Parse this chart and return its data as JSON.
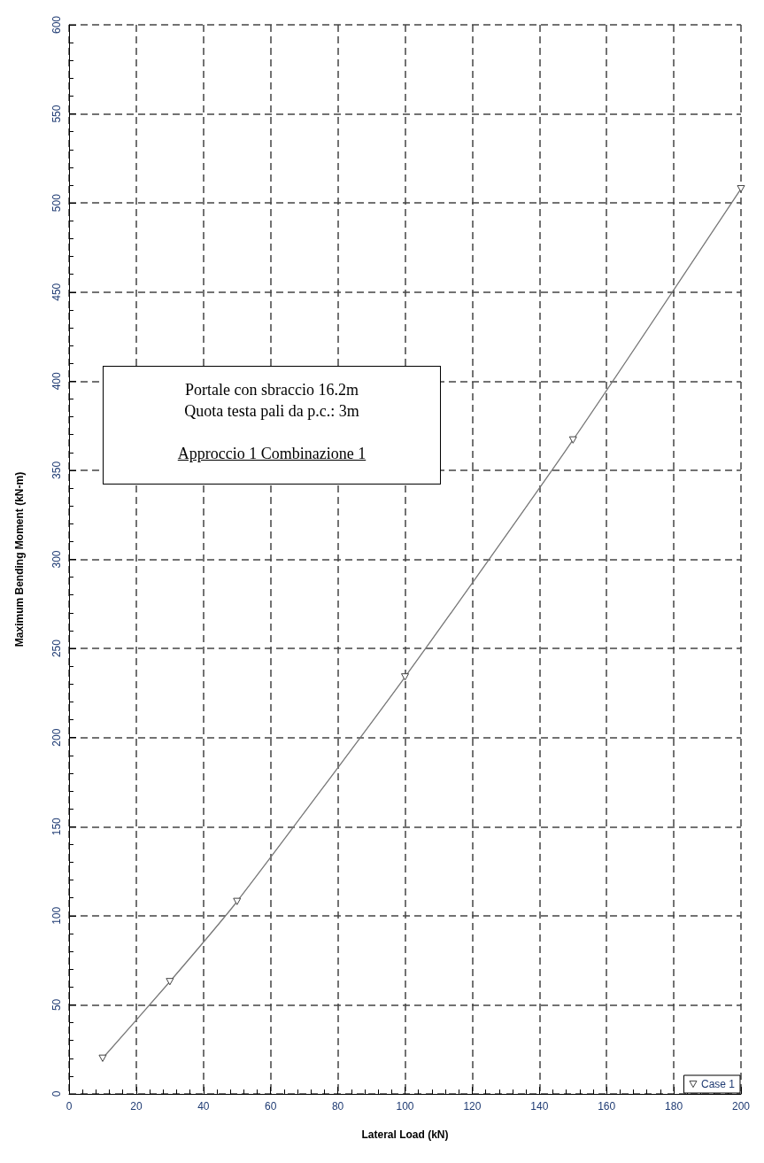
{
  "chart_data": {
    "type": "line",
    "xlabel": "Lateral Load (kN)",
    "ylabel": "Maximum Bending Moment (kN-m)",
    "x": [
      10,
      30,
      50,
      100,
      150,
      200
    ],
    "series": [
      {
        "name": "Case 1",
        "color": "#777777",
        "values": [
          20,
          63,
          108,
          234,
          367,
          508
        ]
      }
    ],
    "xlim": [
      0,
      200
    ],
    "xticks": [
      0,
      20,
      40,
      60,
      80,
      100,
      120,
      140,
      160,
      180,
      200
    ],
    "ylim": [
      0,
      600
    ],
    "yticks": [
      0,
      50,
      100,
      150,
      200,
      250,
      300,
      350,
      400,
      450,
      500,
      550,
      600
    ],
    "grid": true,
    "legend": "bottom right",
    "marker": "triangle",
    "line_style": "solid",
    "annotations": [
      "Portale con sbraccio 16.2m",
      "Quota testa pali da p.c.: 3m",
      "Approccio 1 Combinazione 1"
    ]
  }
}
